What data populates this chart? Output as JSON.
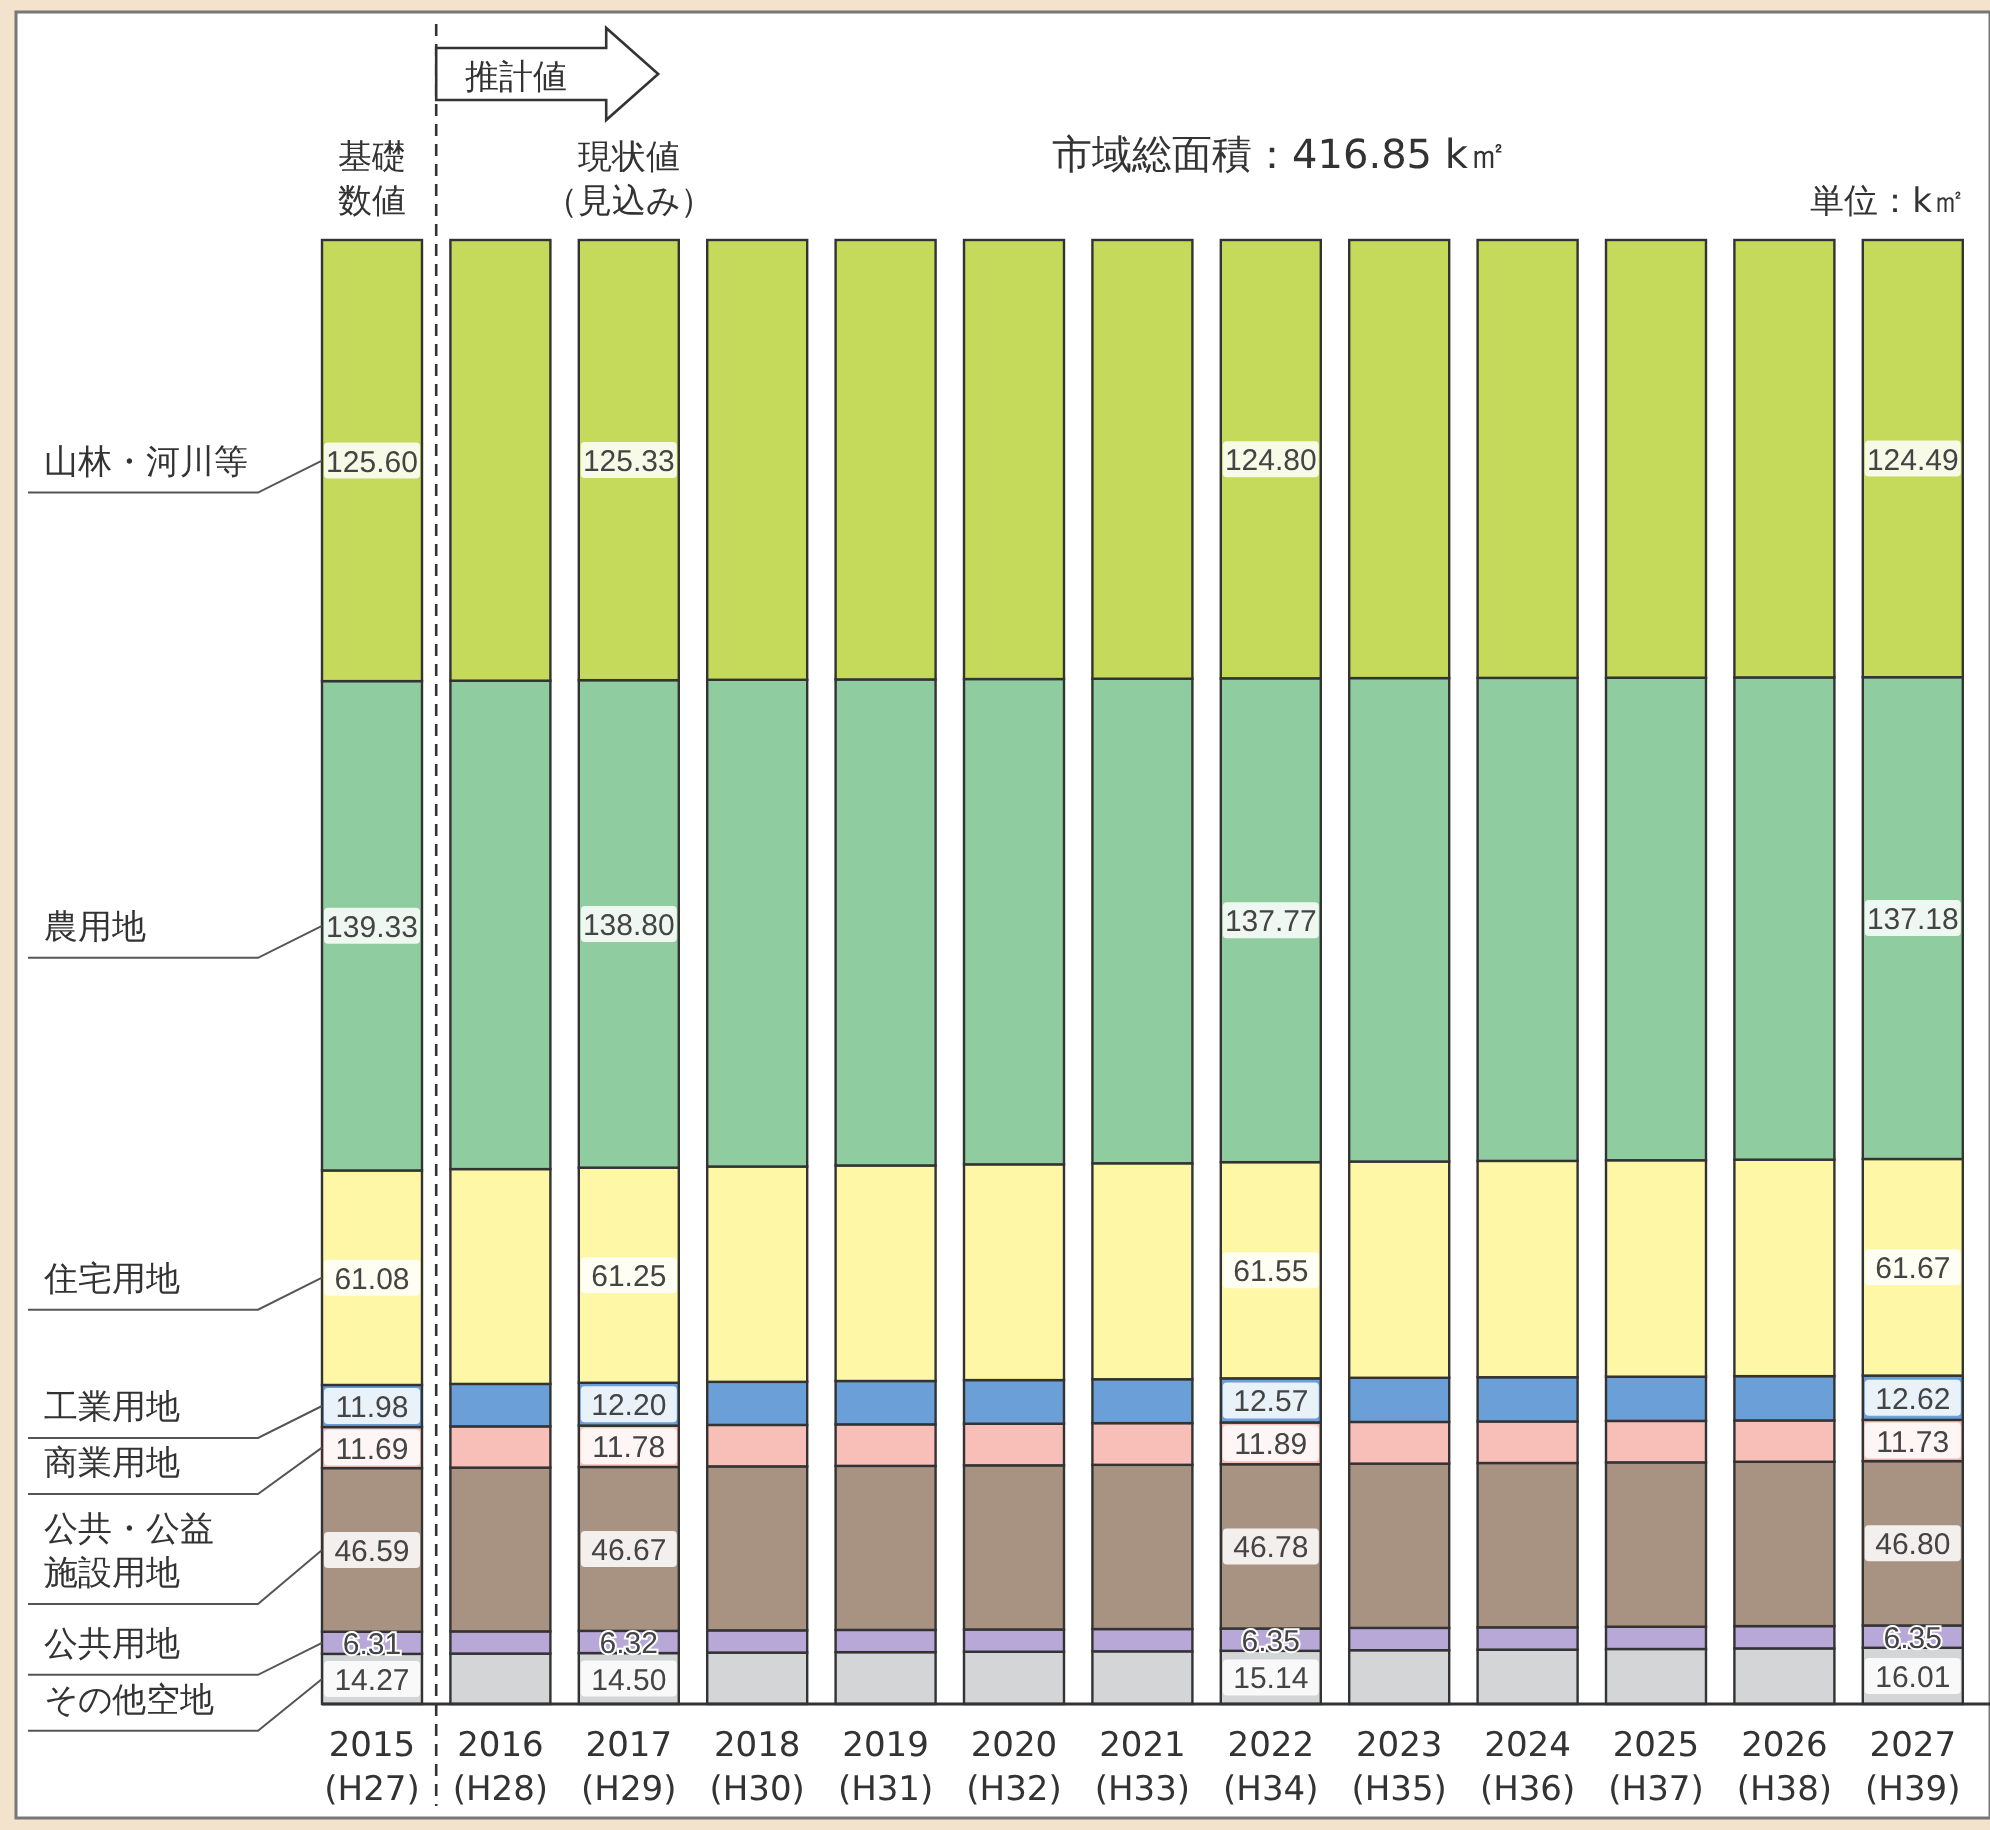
{
  "chart_data": {
    "type": "bar",
    "stacked": true,
    "title": "市域総面積：416.85 k㎡",
    "legend": "left",
    "annotations": [
      "推計値",
      "基礎数値",
      "現状値（見込み）",
      "単位：k㎡"
    ],
    "categories": [
      "2015 (H27)",
      "2016 (H28)",
      "2017 (H29)",
      "2018 (H30)",
      "2019 (H31)",
      "2020 (H32)",
      "2021 (H33)",
      "2022 (H34)",
      "2023 (H35)",
      "2024 (H36)",
      "2025 (H37)",
      "2026 (H38)",
      "2027 (H39)"
    ],
    "series": [
      {
        "name": "その他空地",
        "color": "#d3d5d6",
        "values": [
          14.27,
          14.36,
          14.5,
          14.64,
          14.76,
          14.88,
          15.0,
          15.14,
          15.32,
          15.48,
          15.66,
          15.83,
          16.01
        ],
        "value_labels": [
          "14.27",
          null,
          "14.50",
          null,
          null,
          null,
          null,
          "15.14",
          null,
          null,
          null,
          null,
          "16.01"
        ]
      },
      {
        "name": "公共用地",
        "color": "#b8a8d8",
        "values": [
          6.31,
          6.32,
          6.32,
          6.33,
          6.33,
          6.34,
          6.34,
          6.35,
          6.35,
          6.35,
          6.35,
          6.35,
          6.35
        ],
        "value_labels": [
          "6.31",
          null,
          "6.32",
          null,
          null,
          null,
          null,
          "6.35",
          null,
          null,
          null,
          null,
          "6.35"
        ]
      },
      {
        "name": "公共・公益施設用地",
        "color": "#a89383",
        "values": [
          46.59,
          46.63,
          46.67,
          46.69,
          46.71,
          46.74,
          46.76,
          46.78,
          46.78,
          46.79,
          46.79,
          46.8,
          46.8
        ],
        "value_labels": [
          "46.59",
          null,
          "46.67",
          null,
          null,
          null,
          null,
          "46.78",
          null,
          null,
          null,
          null,
          "46.80"
        ]
      },
      {
        "name": "商業用地",
        "color": "#f7bfb8",
        "values": [
          11.69,
          11.74,
          11.78,
          11.8,
          11.82,
          11.85,
          11.87,
          11.89,
          11.86,
          11.83,
          11.8,
          11.76,
          11.73
        ],
        "value_labels": [
          "11.69",
          null,
          "11.78",
          null,
          null,
          null,
          null,
          "11.89",
          null,
          null,
          null,
          null,
          "11.73"
        ]
      },
      {
        "name": "工業用地",
        "color": "#6a9fd8",
        "values": [
          11.98,
          12.09,
          12.2,
          12.27,
          12.35,
          12.42,
          12.5,
          12.57,
          12.58,
          12.59,
          12.6,
          12.61,
          12.62
        ],
        "value_labels": [
          "11.98",
          null,
          "12.20",
          null,
          null,
          null,
          null,
          "12.57",
          null,
          null,
          null,
          null,
          "12.62"
        ]
      },
      {
        "name": "住宅用地",
        "color": "#fdf7a6",
        "values": [
          61.08,
          61.17,
          61.25,
          61.31,
          61.37,
          61.43,
          61.49,
          61.55,
          61.57,
          61.6,
          61.62,
          61.65,
          61.67
        ],
        "value_labels": [
          "61.08",
          null,
          "61.25",
          null,
          null,
          null,
          null,
          "61.55",
          null,
          null,
          null,
          null,
          "61.67"
        ]
      },
      {
        "name": "農用地",
        "color": "#8fcca0",
        "values": [
          139.33,
          139.07,
          138.8,
          138.59,
          138.39,
          138.18,
          137.98,
          137.77,
          137.65,
          137.53,
          137.41,
          137.3,
          137.18
        ],
        "value_labels": [
          "139.33",
          null,
          "138.80",
          null,
          null,
          null,
          null,
          "137.77",
          null,
          null,
          null,
          null,
          "137.18"
        ]
      },
      {
        "name": "山林・河川等",
        "color": "#c5d95a",
        "values": [
          125.6,
          125.47,
          125.33,
          125.22,
          125.12,
          125.01,
          124.91,
          124.8,
          124.74,
          124.68,
          124.62,
          124.55,
          124.49
        ],
        "value_labels": [
          "125.60",
          null,
          "125.33",
          null,
          null,
          null,
          null,
          "124.80",
          null,
          null,
          null,
          null,
          "124.49"
        ]
      }
    ]
  }
}
